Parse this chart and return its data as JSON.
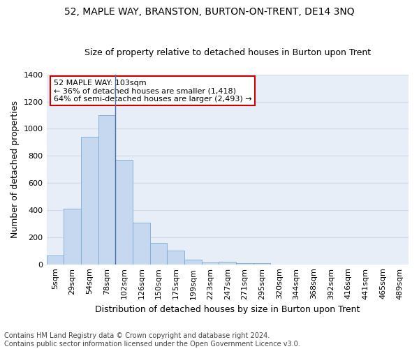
{
  "title": "52, MAPLE WAY, BRANSTON, BURTON-ON-TRENT, DE14 3NQ",
  "subtitle": "Size of property relative to detached houses in Burton upon Trent",
  "xlabel": "Distribution of detached houses by size in Burton upon Trent",
  "ylabel": "Number of detached properties",
  "footer_line1": "Contains HM Land Registry data © Crown copyright and database right 2024.",
  "footer_line2": "Contains public sector information licensed under the Open Government Licence v3.0.",
  "bar_labels": [
    "5sqm",
    "29sqm",
    "54sqm",
    "78sqm",
    "102sqm",
    "126sqm",
    "150sqm",
    "175sqm",
    "199sqm",
    "223sqm",
    "247sqm",
    "271sqm",
    "295sqm",
    "320sqm",
    "344sqm",
    "368sqm",
    "392sqm",
    "416sqm",
    "441sqm",
    "465sqm",
    "489sqm"
  ],
  "bar_values": [
    65,
    410,
    940,
    1100,
    770,
    305,
    160,
    100,
    35,
    15,
    18,
    10,
    10,
    0,
    0,
    0,
    0,
    0,
    0,
    0,
    0
  ],
  "bar_color": "#c5d8f0",
  "bar_edgecolor": "#7aaad4",
  "grid_color": "#d0daea",
  "background_color": "#e8eef8",
  "annotation_line1": "52 MAPLE WAY: 103sqm",
  "annotation_line2": "← 36% of detached houses are smaller (1,418)",
  "annotation_line3": "64% of semi-detached houses are larger (2,493) →",
  "annotation_box_edgecolor": "#cc0000",
  "annotation_box_facecolor": "white",
  "vline_color": "#4a6fa8",
  "vline_x_index": 4,
  "ylim": [
    0,
    1400
  ],
  "yticks": [
    0,
    200,
    400,
    600,
    800,
    1000,
    1200,
    1400
  ],
  "title_fontsize": 10,
  "subtitle_fontsize": 9,
  "ylabel_fontsize": 9,
  "xlabel_fontsize": 9,
  "tick_fontsize": 8,
  "footer_fontsize": 7
}
